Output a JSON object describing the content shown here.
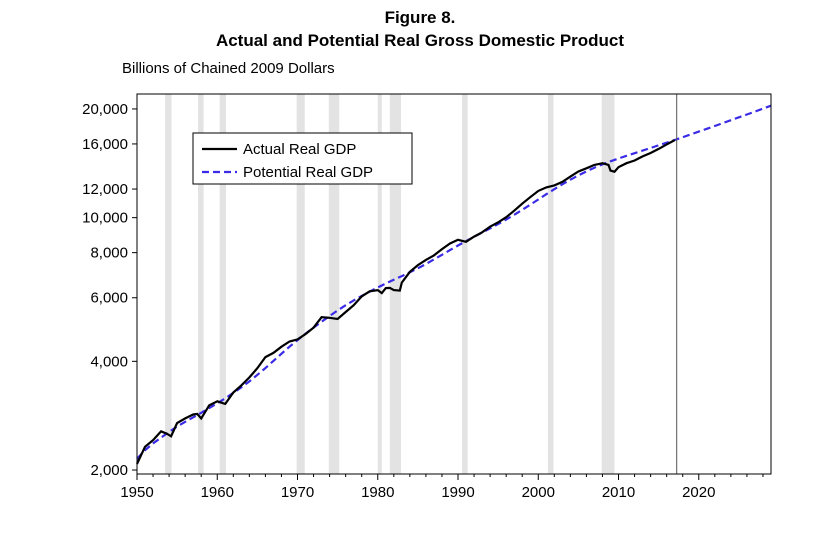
{
  "figure": {
    "title": "Figure 8.",
    "subtitle": "Actual and Potential Real Gross Domestic Product",
    "units": "Billions of Chained 2009 Dollars"
  },
  "colors": {
    "actual": "#000000",
    "potential": "#3a2ce6",
    "recession_shading": "#e3e3e3"
  },
  "chart_data": {
    "type": "line",
    "title": "Actual and Potential Real Gross Domestic Product",
    "ylabel": "Billions of Chained 2009 Dollars",
    "xlabel": "",
    "y_scale": "log",
    "xlim": [
      1950,
      2029
    ],
    "ylim": [
      1950,
      22000
    ],
    "grid": false,
    "legend_position": "upper-left",
    "x_ticks": [
      1950,
      1960,
      1970,
      1980,
      1990,
      2000,
      2010,
      2020
    ],
    "x_tick_labels": [
      "1950",
      "1960",
      "1970",
      "1980",
      "1990",
      "2000",
      "2010",
      "2020"
    ],
    "y_ticks": [
      2000,
      4000,
      6000,
      8000,
      10000,
      12000,
      16000,
      20000
    ],
    "y_tick_labels": [
      "2,000",
      "4,000",
      "6,000",
      "8,000",
      "10,000",
      "12,000",
      "16,000",
      "20,000"
    ],
    "vertical_marker_x": 2017.25,
    "recessions": [
      [
        1953.5,
        1954.3
      ],
      [
        1957.6,
        1958.3
      ],
      [
        1960.3,
        1961.1
      ],
      [
        1969.9,
        1970.9
      ],
      [
        1973.9,
        1975.2
      ],
      [
        1980.0,
        1980.5
      ],
      [
        1981.5,
        1982.9
      ],
      [
        1990.5,
        1991.2
      ],
      [
        2001.2,
        2001.9
      ],
      [
        2007.9,
        2009.5
      ]
    ],
    "series": [
      {
        "name": "Actual Real GDP",
        "style": "solid",
        "x": [
          1950,
          1951,
          1952,
          1953,
          1953.75,
          1954.25,
          1955,
          1956,
          1957,
          1957.5,
          1958,
          1959,
          1960,
          1960.75,
          1961,
          1962,
          1963,
          1964,
          1965,
          1966,
          1967,
          1968,
          1969,
          1970,
          1971,
          1972,
          1973,
          1974,
          1975,
          1976,
          1977,
          1978,
          1979,
          1980,
          1980.5,
          1981,
          1981.5,
          1982,
          1982.75,
          1983,
          1984,
          1985,
          1986,
          1987,
          1988,
          1989,
          1990,
          1990.75,
          1991,
          1992,
          1993,
          1994,
          1995,
          1996,
          1997,
          1998,
          1999,
          2000,
          2001,
          2002,
          2003,
          2004,
          2005,
          2006,
          2007,
          2008,
          2008.75,
          2009,
          2009.5,
          2010,
          2011,
          2012,
          2013,
          2014,
          2015,
          2016,
          2017
        ],
        "y": [
          2080,
          2320,
          2420,
          2560,
          2520,
          2480,
          2700,
          2780,
          2850,
          2860,
          2780,
          3020,
          3100,
          3060,
          3050,
          3280,
          3430,
          3610,
          3830,
          4110,
          4220,
          4390,
          4540,
          4600,
          4760,
          4960,
          5300,
          5280,
          5240,
          5480,
          5720,
          6050,
          6250,
          6300,
          6180,
          6380,
          6390,
          6300,
          6280,
          6610,
          7080,
          7390,
          7640,
          7860,
          8180,
          8480,
          8680,
          8600,
          8570,
          8860,
          9110,
          9440,
          9700,
          10030,
          10450,
          10930,
          11390,
          11860,
          12130,
          12280,
          12560,
          12990,
          13420,
          13700,
          14000,
          14150,
          14000,
          13500,
          13400,
          13800,
          14150,
          14400,
          14780,
          15100,
          15500,
          15950,
          16400
        ]
      },
      {
        "name": "Potential Real GDP",
        "style": "dashed",
        "x": [
          1950,
          1951,
          1952,
          1953,
          1954,
          1955,
          1956,
          1957,
          1958,
          1959,
          1960,
          1961,
          1962,
          1963,
          1964,
          1965,
          1966,
          1967,
          1968,
          1969,
          1970,
          1971,
          1972,
          1973,
          1974,
          1975,
          1976,
          1977,
          1978,
          1979,
          1980,
          1981,
          1982,
          1983,
          1984,
          1985,
          1986,
          1987,
          1988,
          1989,
          1990,
          1991,
          1992,
          1993,
          1994,
          1995,
          1996,
          1997,
          1998,
          1999,
          2000,
          2001,
          2002,
          2003,
          2004,
          2005,
          2006,
          2007,
          2008,
          2009,
          2010,
          2011,
          2012,
          2013,
          2014,
          2015,
          2016,
          2017,
          2018,
          2019,
          2020,
          2021,
          2022,
          2023,
          2024,
          2025,
          2026,
          2027,
          2028,
          2029
        ],
        "y": [
          2150,
          2270,
          2370,
          2460,
          2550,
          2640,
          2720,
          2800,
          2880,
          2970,
          3060,
          3160,
          3270,
          3390,
          3520,
          3670,
          3830,
          4010,
          4200,
          4390,
          4580,
          4770,
          4960,
          5150,
          5340,
          5530,
          5720,
          5900,
          6070,
          6240,
          6410,
          6570,
          6730,
          6890,
          7060,
          7240,
          7440,
          7660,
          7890,
          8130,
          8370,
          8610,
          8850,
          9090,
          9340,
          9600,
          9880,
          10180,
          10510,
          10860,
          11230,
          11610,
          11990,
          12370,
          12740,
          13090,
          13430,
          13750,
          14050,
          14320,
          14580,
          14830,
          15080,
          15330,
          15590,
          15860,
          16130,
          16410,
          16700,
          17000,
          17310,
          17620,
          17940,
          18270,
          18610,
          18960,
          19310,
          19670,
          20040,
          20420
        ]
      }
    ]
  }
}
